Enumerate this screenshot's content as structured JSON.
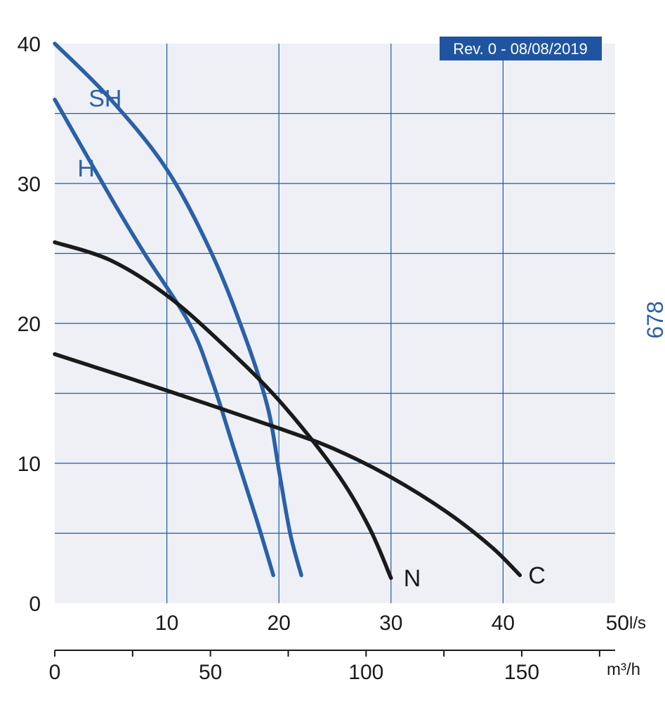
{
  "revision": "Rev. 0 - 08/08/2019",
  "model_code": "678",
  "colors": {
    "plot_bg": "#eef0f6",
    "grid": "#1f5aa0",
    "blue_curve": "#2a60a8",
    "black_curve": "#1a1a1a",
    "badge_bg": "#1f55a0",
    "model_text": "#2a60a8"
  },
  "chart_data": {
    "type": "line",
    "title": "",
    "xlabel": "l/s",
    "xlabel_secondary": "m³/h",
    "ylabel": "",
    "xlim": [
      0,
      50
    ],
    "ylim": [
      0,
      40
    ],
    "x_ticks": [
      "10",
      "20",
      "30",
      "40",
      "50"
    ],
    "y_ticks": [
      "0",
      "10",
      "20",
      "30",
      "40"
    ],
    "secondary_x_ticks": [
      "0",
      "50",
      "100",
      "150"
    ],
    "grid": true,
    "series": [
      {
        "name": "SH",
        "color": "blue",
        "x": [
          0,
          5,
          10,
          14,
          17,
          19,
          20,
          21,
          22
        ],
        "y": [
          40.0,
          36.0,
          31.0,
          25.0,
          19.0,
          14.0,
          9.5,
          5.0,
          2.0
        ]
      },
      {
        "name": "H",
        "color": "blue",
        "x": [
          0,
          5,
          8,
          12,
          14,
          16,
          18,
          19.5
        ],
        "y": [
          36.0,
          29.0,
          25.0,
          20.0,
          16.0,
          11.0,
          6.0,
          2.0
        ]
      },
      {
        "name": "N",
        "color": "black",
        "x": [
          0,
          5,
          10,
          15,
          20,
          25,
          28,
          30
        ],
        "y": [
          25.8,
          24.5,
          22.0,
          18.5,
          14.5,
          9.5,
          5.5,
          1.8
        ]
      },
      {
        "name": "C",
        "color": "black",
        "x": [
          0,
          10,
          20,
          25,
          30,
          35,
          39,
          41.5
        ],
        "y": [
          17.8,
          15.2,
          12.5,
          11.0,
          9.0,
          6.5,
          4.0,
          2.0
        ]
      }
    ]
  }
}
